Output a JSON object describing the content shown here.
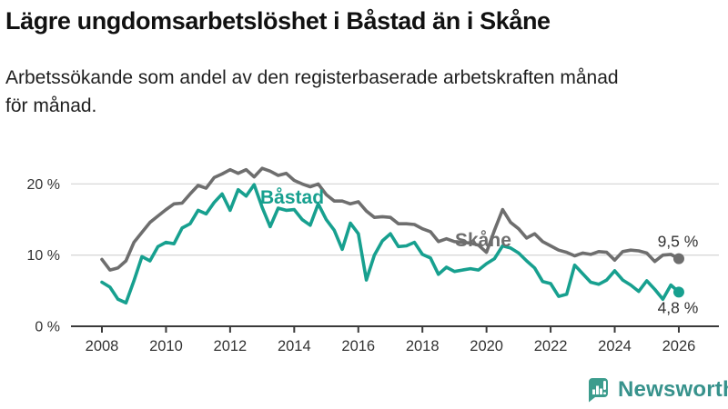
{
  "header": {
    "title": "Lägre ungdomsarbetslöshet i Båstad än i Skåne",
    "subtitle_lines": [
      "Arbetssökande som andel av den registerbaserade arbetskraften månad",
      "för månad."
    ]
  },
  "chart_data": {
    "type": "line",
    "title": "Lägre ungdomsarbetslöshet i Båstad än i Skåne",
    "subtitle": "Arbetssökande som andel av den registerbaserade arbetskraften månad för månad.",
    "unit": "%",
    "x_start": 2008,
    "x_step": 0.25,
    "xlim": [
      2007.0,
      2027.2
    ],
    "ylim": [
      0,
      23.5
    ],
    "grid": "horizontal",
    "x_ticks": [
      {
        "year": 2008,
        "label": "2008"
      },
      {
        "year": 2010,
        "label": "2010"
      },
      {
        "year": 2012,
        "label": "2012"
      },
      {
        "year": 2014,
        "label": "2014"
      },
      {
        "year": 2016,
        "label": "2016"
      },
      {
        "year": 2018,
        "label": "2018"
      },
      {
        "year": 2020,
        "label": "2020"
      },
      {
        "year": 2022,
        "label": "2022"
      },
      {
        "year": 2024,
        "label": "2024"
      },
      {
        "year": 2026,
        "label": "2026"
      }
    ],
    "y_ticks": [
      {
        "value": 0,
        "label": "0 %"
      },
      {
        "value": 10,
        "label": "10 %"
      },
      {
        "value": 20,
        "label": "20 %"
      }
    ],
    "series": [
      {
        "name": "Skåne",
        "color": "#6E6E6E",
        "end_label": "9,5 %",
        "values": [
          9.4,
          7.9,
          8.2,
          9.2,
          11.8,
          13.2,
          14.6,
          15.5,
          16.4,
          17.2,
          17.3,
          18.6,
          19.8,
          19.4,
          20.9,
          21.4,
          22.0,
          21.5,
          22.0,
          21.0,
          22.2,
          21.8,
          21.2,
          21.5,
          20.5,
          20.0,
          19.6,
          20.0,
          18.5,
          17.6,
          17.6,
          17.2,
          17.5,
          16.2,
          15.3,
          15.4,
          15.3,
          14.4,
          14.4,
          14.3,
          13.7,
          13.3,
          11.9,
          12.3,
          11.9,
          11.8,
          11.7,
          11.4,
          10.4,
          13.5,
          16.4,
          14.6,
          13.7,
          12.4,
          13.0,
          11.9,
          11.3,
          10.7,
          10.4,
          9.9,
          10.3,
          10.1,
          10.5,
          10.4,
          9.3,
          10.5,
          10.7,
          10.6,
          10.3,
          9.1,
          10.0,
          10.1,
          9.5
        ]
      },
      {
        "name": "Båstad",
        "color": "#17A08F",
        "end_label": "4,8 %",
        "values": [
          6.2,
          5.5,
          3.8,
          3.3,
          6.4,
          9.8,
          9.2,
          11.2,
          11.8,
          11.6,
          13.8,
          14.4,
          16.3,
          15.8,
          17.4,
          18.6,
          16.3,
          19.2,
          18.3,
          19.9,
          16.7,
          14.0,
          16.6,
          16.3,
          16.4,
          15.0,
          14.2,
          17.2,
          15.0,
          13.5,
          10.8,
          14.5,
          13.0,
          6.5,
          10.0,
          12.0,
          13.0,
          11.2,
          11.3,
          11.8,
          10.1,
          9.6,
          7.3,
          8.3,
          7.7,
          7.9,
          8.1,
          7.9,
          8.8,
          9.5,
          11.3,
          11.0,
          10.3,
          9.2,
          8.2,
          6.3,
          6.0,
          4.2,
          4.5,
          8.6,
          7.4,
          6.2,
          5.9,
          6.5,
          7.8,
          6.5,
          5.8,
          4.9,
          6.4,
          5.2,
          3.8,
          5.8,
          4.8
        ]
      }
    ],
    "colors": {
      "bastad": "#17A08F",
      "skane": "#6E6E6E",
      "gridline": "#D8D8D8",
      "axis": "#3A3A3A",
      "axis_text": "#333333",
      "value_label": "#333333"
    }
  },
  "footer": {
    "brand": "Newsworthy",
    "brand_color": "#37928C"
  }
}
